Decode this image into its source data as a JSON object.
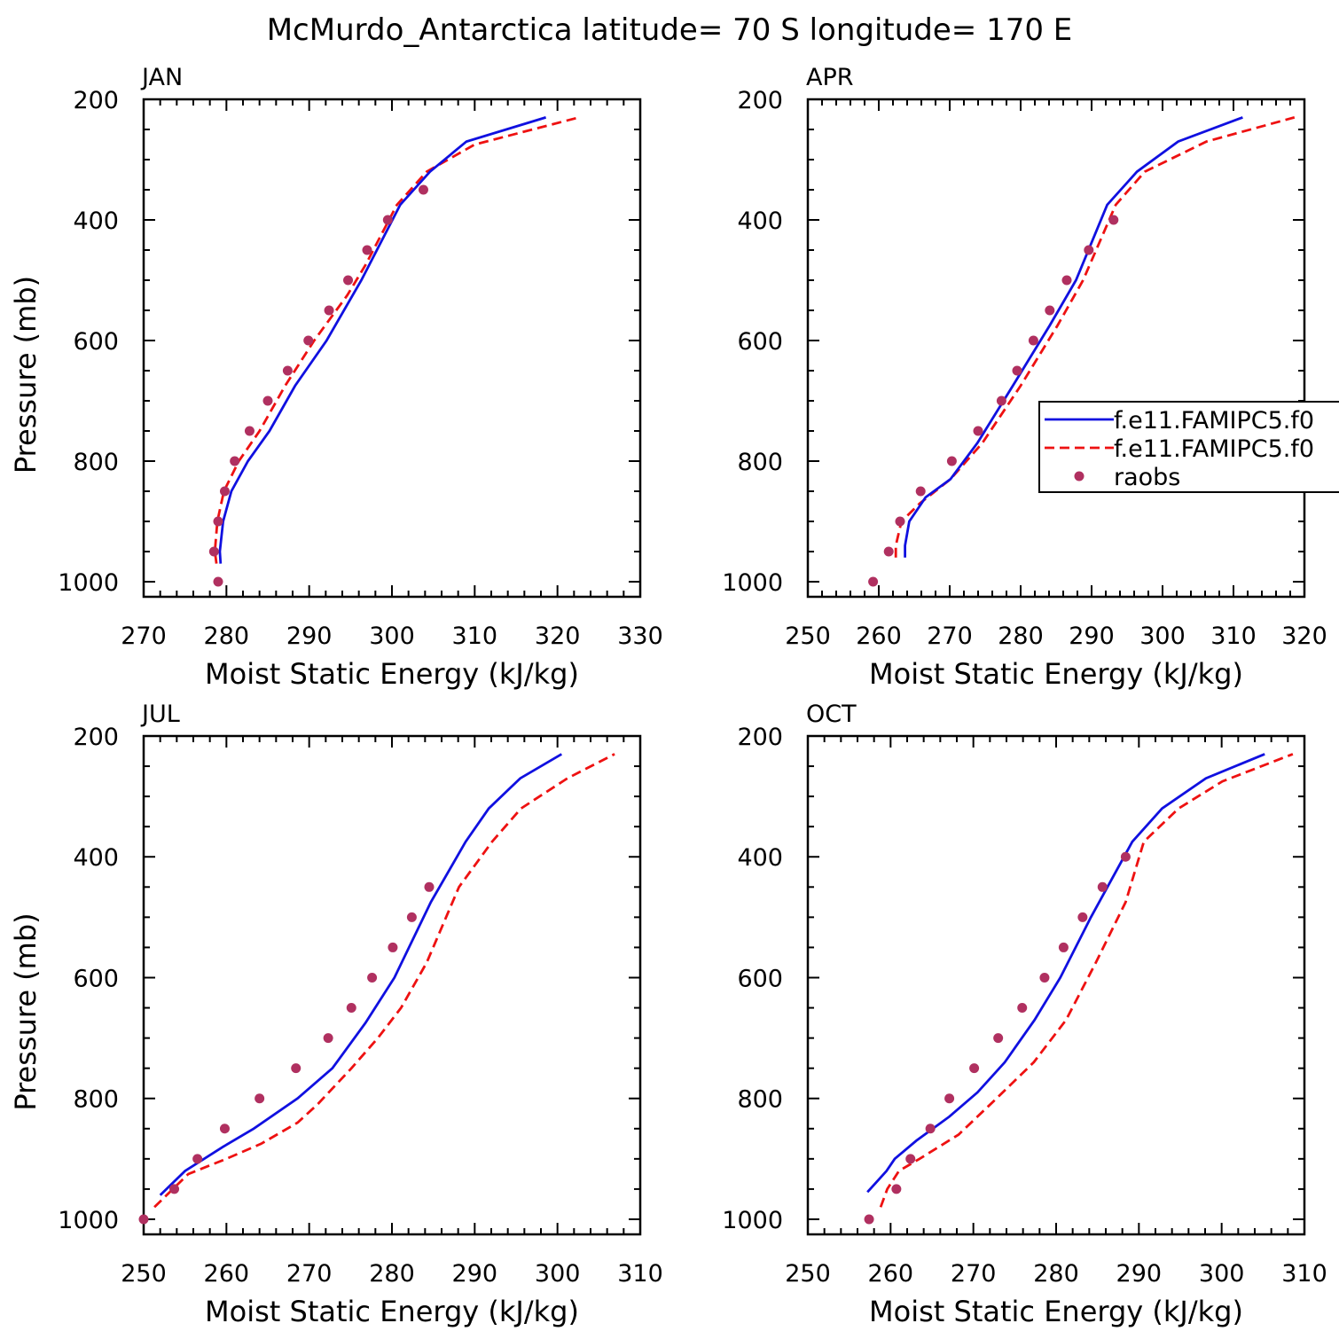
{
  "title": "McMurdo_Antarctica  latitude= 70 S longitude= 170 E",
  "colors": {
    "model1": "#1010e0",
    "model2": "#ee1111",
    "raobs": "#b03060"
  },
  "legend": {
    "placement": "right edge of APR panel",
    "entries": [
      {
        "label": "f.e11.FAMIPC5.f0",
        "style": "solid",
        "color": "#1010e0"
      },
      {
        "label": "f.e11.FAMIPC5.f0",
        "style": "dashed",
        "color": "#ee1111"
      },
      {
        "label": "raobs",
        "style": "marker",
        "color": "#b03060"
      }
    ]
  },
  "chart_data": [
    {
      "type": "line",
      "panel": "JAN",
      "xlabel": "Moist Static Energy (kJ/kg)",
      "ylabel": "Pressure (mb)",
      "xlim": [
        270,
        330
      ],
      "ylim": [
        1025,
        200
      ],
      "xticks": [
        270,
        280,
        290,
        300,
        310,
        320,
        330
      ],
      "yticks": [
        200,
        400,
        600,
        800,
        1000
      ],
      "model1": {
        "x": [
          279.3,
          279.2,
          279.6,
          280.6,
          282.6,
          285.2,
          288.3,
          292.1,
          296.3,
          301.0,
          304.6,
          309.0,
          318.6
        ],
        "y": [
          970,
          950,
          900,
          850,
          800,
          750,
          675,
          600,
          500,
          375,
          320,
          270,
          230
        ]
      },
      "model2": {
        "x": [
          278.8,
          278.6,
          278.9,
          279.7,
          281.5,
          284.0,
          287.1,
          290.6,
          294.6,
          296.8,
          300.6,
          304.2,
          310.0,
          322.6
        ],
        "y": [
          970,
          950,
          900,
          850,
          800,
          750,
          675,
          600,
          525,
          475,
          375,
          320,
          275,
          230
        ]
      },
      "raobs": {
        "x": [
          279.0,
          278.5,
          279.0,
          279.8,
          281.0,
          282.8,
          285.0,
          287.4,
          289.9,
          292.4,
          294.7,
          297.0,
          299.5,
          303.8
        ],
        "y": [
          1000,
          950,
          900,
          850,
          800,
          750,
          700,
          650,
          600,
          550,
          500,
          450,
          400,
          350
        ]
      }
    },
    {
      "type": "line",
      "panel": "APR",
      "xlabel": "Moist Static Energy (kJ/kg)",
      "ylabel": "",
      "xlim": [
        250,
        320
      ],
      "ylim": [
        1025,
        200
      ],
      "xticks": [
        250,
        260,
        270,
        280,
        290,
        300,
        310,
        320
      ],
      "yticks": [
        200,
        400,
        600,
        800,
        1000
      ],
      "model1": {
        "x": [
          263.7,
          263.7,
          264.3,
          266.6,
          270.1,
          273.9,
          278.9,
          284.1,
          287.8,
          292.2,
          296.4,
          302.2,
          311.3
        ],
        "y": [
          960,
          940,
          900,
          860,
          830,
          770,
          675,
          575,
          500,
          375,
          320,
          270,
          230
        ]
      },
      "model2": {
        "x": [
          262.4,
          262.4,
          263.2,
          265.8,
          270.1,
          274.6,
          280.0,
          285.2,
          288.8,
          293.4,
          297.5,
          306.2,
          318.6
        ],
        "y": [
          960,
          940,
          900,
          870,
          830,
          770,
          675,
          575,
          500,
          375,
          320,
          270,
          230
        ]
      },
      "raobs": {
        "x": [
          259.2,
          261.4,
          263.0,
          265.9,
          270.3,
          274.0,
          277.3,
          279.5,
          281.8,
          284.1,
          286.5,
          289.6,
          293.1
        ],
        "y": [
          1000,
          950,
          900,
          850,
          800,
          750,
          700,
          650,
          600,
          550,
          500,
          450,
          400
        ]
      }
    },
    {
      "type": "line",
      "panel": "JUL",
      "xlabel": "Moist Static Energy (kJ/kg)",
      "ylabel": "Pressure (mb)",
      "xlim": [
        250,
        310
      ],
      "ylim": [
        1025,
        200
      ],
      "xticks": [
        250,
        260,
        270,
        280,
        290,
        300,
        310
      ],
      "yticks": [
        200,
        400,
        600,
        800,
        1000
      ],
      "model1": {
        "x": [
          252.0,
          255.0,
          259.6,
          263.3,
          268.6,
          272.8,
          276.8,
          280.3,
          284.7,
          288.9,
          291.7,
          295.5,
          300.5
        ],
        "y": [
          960,
          920,
          880,
          850,
          800,
          750,
          675,
          600,
          475,
          375,
          320,
          270,
          230
        ]
      },
      "model2": {
        "x": [
          251.3,
          255.4,
          260.0,
          264.2,
          268.6,
          271.0,
          275.1,
          278.3,
          281.1,
          284.2,
          288.1,
          292.1,
          295.6,
          301.2,
          306.9
        ],
        "y": [
          980,
          925,
          900,
          875,
          840,
          810,
          750,
          700,
          650,
          575,
          450,
          375,
          320,
          270,
          230
        ]
      },
      "raobs": {
        "x": [
          250.0,
          253.7,
          256.5,
          259.8,
          264.0,
          268.4,
          272.3,
          275.1,
          277.6,
          280.1,
          282.4,
          284.5
        ],
        "y": [
          1000,
          950,
          900,
          850,
          800,
          750,
          700,
          650,
          600,
          550,
          500,
          450
        ]
      }
    },
    {
      "type": "line",
      "panel": "OCT",
      "xlabel": "Moist Static Energy (kJ/kg)",
      "ylabel": "",
      "xlim": [
        250,
        310
      ],
      "ylim": [
        1025,
        200
      ],
      "xticks": [
        250,
        260,
        270,
        280,
        290,
        300,
        310
      ],
      "yticks": [
        200,
        400,
        600,
        800,
        1000
      ],
      "model1": {
        "x": [
          257.2,
          258.2,
          259.5,
          260.5,
          263.1,
          267.1,
          270.5,
          273.8,
          277.4,
          280.5,
          284.2,
          289.2,
          292.8,
          298.1,
          305.2
        ],
        "y": [
          955,
          940,
          920,
          900,
          870,
          830,
          790,
          740,
          670,
          600,
          500,
          375,
          320,
          270,
          230
        ]
      },
      "model2": {
        "x": [
          258.8,
          259.6,
          261.0,
          263.5,
          268.2,
          272.8,
          277.3,
          281.2,
          284.8,
          288.4,
          290.6,
          294.8,
          300.1,
          308.6
        ],
        "y": [
          980,
          950,
          920,
          900,
          860,
          800,
          740,
          670,
          575,
          475,
          375,
          320,
          275,
          230
        ]
      },
      "raobs": {
        "x": [
          257.4,
          260.7,
          262.4,
          264.8,
          267.1,
          270.1,
          273.0,
          275.9,
          278.6,
          280.9,
          283.2,
          285.6,
          288.4
        ],
        "y": [
          1000,
          950,
          900,
          850,
          800,
          750,
          700,
          650,
          600,
          550,
          500,
          450,
          400
        ]
      }
    }
  ]
}
